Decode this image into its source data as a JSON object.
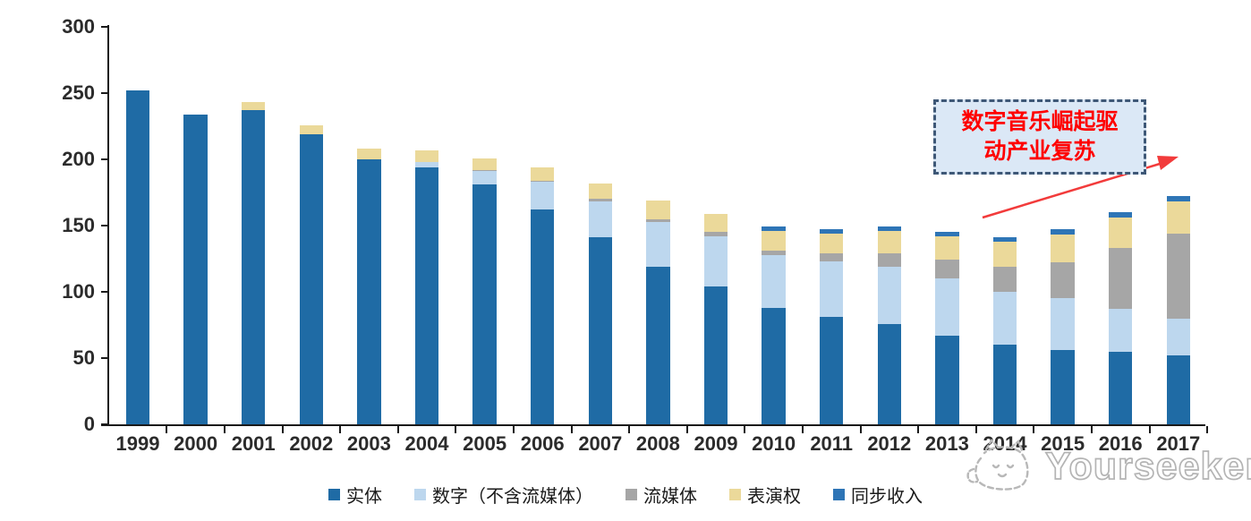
{
  "chart_data": {
    "type": "bar",
    "stacked": true,
    "title": "",
    "xlabel": "",
    "ylabel": "",
    "ylim": [
      0,
      300
    ],
    "ytick_step": 50,
    "grid": false,
    "legend_position": "bottom",
    "categories": [
      "1999",
      "2000",
      "2001",
      "2002",
      "2003",
      "2004",
      "2005",
      "2006",
      "2007",
      "2008",
      "2009",
      "2010",
      "2011",
      "2012",
      "2013",
      "2014",
      "2015",
      "2016",
      "2017"
    ],
    "series": [
      {
        "name": "实体",
        "color": "#1f6ba5",
        "values": [
          252,
          234,
          237,
          219,
          200,
          194,
          181,
          162,
          141,
          119,
          104,
          88,
          81,
          76,
          67,
          60,
          56,
          55,
          52
        ]
      },
      {
        "name": "数字（不含流媒体）",
        "color": "#bdd7ee",
        "values": [
          0,
          0,
          0,
          0,
          0,
          4,
          10,
          21,
          27,
          34,
          38,
          40,
          42,
          43,
          43,
          40,
          39,
          32,
          28
        ]
      },
      {
        "name": "流媒体",
        "color": "#a6a6a6",
        "values": [
          0,
          0,
          0,
          0,
          0,
          0,
          1,
          1,
          2,
          2,
          3,
          3,
          6,
          10,
          14,
          19,
          27,
          46,
          64
        ]
      },
      {
        "name": "表演权",
        "color": "#ebd99a",
        "values": [
          0,
          0,
          6,
          7,
          8,
          9,
          9,
          10,
          12,
          14,
          14,
          15,
          15,
          17,
          18,
          19,
          21,
          23,
          24
        ]
      },
      {
        "name": "同步收入",
        "color": "#2e75b6",
        "values": [
          0,
          0,
          0,
          0,
          0,
          0,
          0,
          0,
          0,
          0,
          0,
          3,
          3,
          3,
          3,
          3,
          4,
          4,
          4
        ]
      }
    ]
  },
  "axis": {
    "y_ticks": [
      "0",
      "50",
      "100",
      "150",
      "200",
      "250",
      "300"
    ]
  },
  "annotation": {
    "line1": "数字音乐崛起驱",
    "line2": "动产业复苏",
    "text_color": "#ff0000",
    "box_fill": "#dbe8f6",
    "box_border": "#3e5877",
    "arrow_color": "#f23b3b"
  },
  "watermark": {
    "text": "Yourseeker",
    "logo": "cat-logo",
    "color": "#b4b4b4"
  }
}
